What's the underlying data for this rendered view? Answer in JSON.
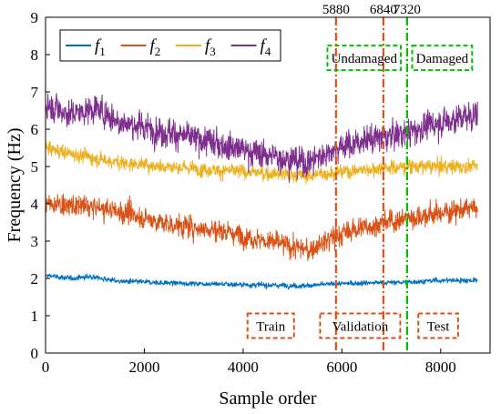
{
  "chart_data": {
    "type": "line",
    "title": "",
    "xlabel": "Sample order",
    "ylabel": "Frequency (Hz)",
    "xlim": [
      0,
      9000
    ],
    "ylim": [
      0,
      9
    ],
    "xticks": [
      0,
      2000,
      4000,
      6000,
      8000
    ],
    "yticks": [
      0,
      1,
      2,
      3,
      4,
      5,
      6,
      7,
      8,
      9
    ],
    "grid": false,
    "legend_position": "top-left",
    "n_samples": 8750,
    "series": [
      {
        "name": "f1",
        "label_base": "f",
        "label_sub": "1",
        "color": "#0072BD",
        "x_knots": [
          0,
          500,
          900,
          1500,
          2500,
          3500,
          4500,
          5200,
          5800,
          6500,
          7300,
          8000,
          8750
        ],
        "y_knots": [
          2.08,
          2.0,
          2.05,
          1.92,
          1.88,
          1.85,
          1.82,
          1.8,
          1.85,
          1.88,
          1.9,
          1.95,
          1.95
        ],
        "noise": 0.05
      },
      {
        "name": "f2",
        "label_base": "f",
        "label_sub": "2",
        "color": "#D95319",
        "x_knots": [
          0,
          500,
          1000,
          1500,
          2500,
          3500,
          4500,
          5000,
          5300,
          5600,
          5900,
          6500,
          7300,
          8000,
          8750
        ],
        "y_knots": [
          4.0,
          3.95,
          3.9,
          3.8,
          3.45,
          3.3,
          3.0,
          2.85,
          2.75,
          2.95,
          3.15,
          3.4,
          3.6,
          3.75,
          3.9
        ],
        "noise": 0.22
      },
      {
        "name": "f3",
        "label_base": "f",
        "label_sub": "3",
        "color": "#EDB120",
        "x_knots": [
          0,
          500,
          1500,
          2500,
          3500,
          4500,
          5300,
          5900,
          6500,
          7300,
          8000,
          8750
        ],
        "y_knots": [
          5.5,
          5.35,
          5.1,
          5.0,
          4.9,
          4.82,
          4.75,
          4.85,
          4.92,
          5.0,
          5.0,
          5.0
        ],
        "noise": 0.14
      },
      {
        "name": "f4",
        "label_base": "f",
        "label_sub": "4",
        "color": "#7E2F8E",
        "x_knots": [
          0,
          500,
          1000,
          1500,
          2500,
          3500,
          4500,
          5300,
          5900,
          6500,
          7300,
          8000,
          8750
        ],
        "y_knots": [
          6.7,
          6.4,
          6.55,
          6.2,
          5.9,
          5.6,
          5.3,
          5.1,
          5.5,
          5.7,
          5.9,
          6.2,
          6.4
        ],
        "noise": 0.28
      }
    ],
    "vlines": [
      {
        "x": 5880,
        "label": "5880",
        "color": "#D95319",
        "style": "dashdot"
      },
      {
        "x": 6840,
        "label": "6840",
        "color": "#D95319",
        "style": "dashdot"
      },
      {
        "x": 7320,
        "label": "7320",
        "color": "#00C000",
        "style": "dashdot"
      }
    ],
    "annotations": [
      {
        "text": "Undamaged",
        "x": 6450,
        "y": 7.9,
        "color": "#00C000"
      },
      {
        "text": "Damaged",
        "x": 8030,
        "y": 7.9,
        "color": "#00C000"
      },
      {
        "text": "Train",
        "x": 4560,
        "y": 0.72,
        "color": "#D95319"
      },
      {
        "text": "Validation",
        "x": 6370,
        "y": 0.72,
        "color": "#D95319"
      },
      {
        "text": "Test",
        "x": 7950,
        "y": 0.72,
        "color": "#D95319"
      }
    ]
  }
}
